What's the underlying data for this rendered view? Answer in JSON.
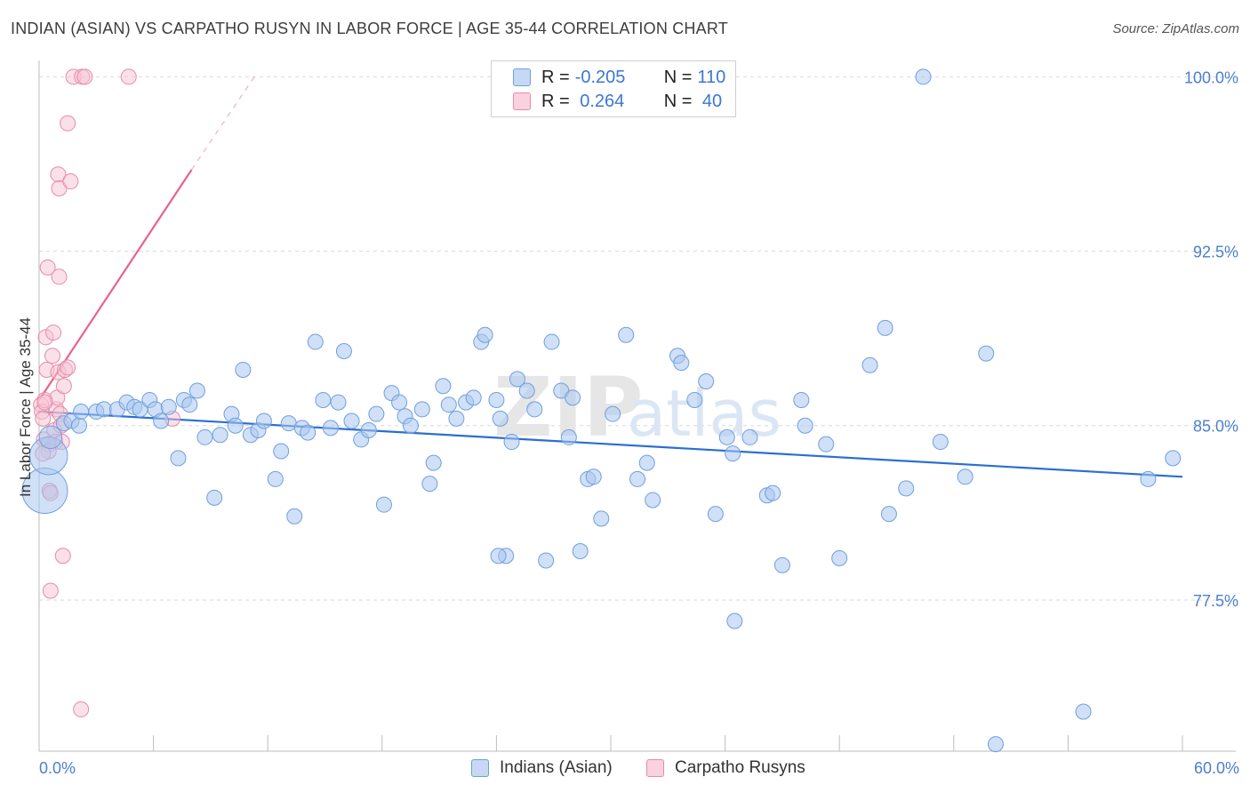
{
  "title": "INDIAN (ASIAN) VS CARPATHO RUSYN IN LABOR FORCE | AGE 35-44 CORRELATION CHART",
  "source": "Source: ZipAtlas.com",
  "watermark": "ZIPatlas",
  "colors": {
    "blue_fill": "#a9c6ef",
    "blue_stroke": "#6f9fe0",
    "blue_line": "#2a6fd1",
    "pink_fill": "#f6c3d3",
    "pink_stroke": "#e98aa8",
    "pink_line": "#e8628c",
    "axis_text": "#4a7fd0",
    "grid": "#d9d9d9"
  },
  "legend": {
    "rows": [
      {
        "r_label": "R =",
        "r_value": "-0.205",
        "n_label": "N =",
        "n_value": "110",
        "series": "blue"
      },
      {
        "r_label": "R =",
        "r_value": " 0.264",
        "n_label": "N =",
        "n_value": " 40",
        "series": "pink"
      }
    ]
  },
  "bottom_legend": {
    "blue_label": "Indians (Asian)",
    "pink_label": "Carpatho Rusyns"
  },
  "chart_data": {
    "type": "scatter",
    "xlabel": "",
    "ylabel": "In Labor Force | Age 35-44",
    "xlim": [
      0,
      60
    ],
    "ylim": [
      71,
      100.7
    ],
    "x_tick_labels": [
      {
        "value": 0,
        "label": "0.0%"
      },
      {
        "value": 60,
        "label": "60.0%"
      }
    ],
    "y_tick_labels": [
      {
        "value": 100.0,
        "label": "100.0%"
      },
      {
        "value": 92.5,
        "label": "92.5%"
      },
      {
        "value": 85.0,
        "label": "85.0%"
      },
      {
        "value": 77.5,
        "label": "77.5%"
      }
    ],
    "x_minor_ticks": [
      0,
      6,
      12,
      18,
      24,
      30,
      36,
      42,
      48,
      54,
      60
    ],
    "grid": true,
    "series": [
      {
        "name": "Indians (Asian)",
        "color": "blue",
        "trend": {
          "x": [
            0,
            60
          ],
          "y": [
            85.6,
            82.8
          ]
        },
        "points": [
          [
            0.3,
            82.2,
            3
          ],
          [
            0.5,
            83.7,
            2.5
          ],
          [
            0.6,
            84.5,
            1.5
          ],
          [
            1.3,
            85.1,
            1
          ],
          [
            1.7,
            85.2,
            1
          ],
          [
            2.1,
            85.0,
            1
          ],
          [
            2.2,
            85.6,
            1
          ],
          [
            3.0,
            85.6,
            1
          ],
          [
            3.4,
            85.7,
            1
          ],
          [
            4.1,
            85.7,
            1
          ],
          [
            4.6,
            86.0,
            1
          ],
          [
            5.0,
            85.8,
            1
          ],
          [
            5.3,
            85.7,
            1
          ],
          [
            5.8,
            86.1,
            1
          ],
          [
            6.1,
            85.7,
            1
          ],
          [
            6.4,
            85.2,
            1
          ],
          [
            6.8,
            85.8,
            1
          ],
          [
            7.3,
            83.6,
            1
          ],
          [
            7.6,
            86.1,
            1
          ],
          [
            7.9,
            85.9,
            1
          ],
          [
            8.3,
            86.5,
            1
          ],
          [
            8.7,
            84.5,
            1
          ],
          [
            9.2,
            81.9,
            1
          ],
          [
            9.5,
            84.6,
            1
          ],
          [
            10.1,
            85.5,
            1
          ],
          [
            10.3,
            85.0,
            1
          ],
          [
            10.7,
            87.4,
            1
          ],
          [
            11.1,
            84.6,
            1
          ],
          [
            11.5,
            84.8,
            1
          ],
          [
            11.8,
            85.2,
            1
          ],
          [
            12.4,
            82.7,
            1
          ],
          [
            12.7,
            83.9,
            1
          ],
          [
            13.1,
            85.1,
            1
          ],
          [
            13.4,
            81.1,
            1
          ],
          [
            13.8,
            84.9,
            1
          ],
          [
            14.1,
            84.7,
            1
          ],
          [
            14.5,
            88.6,
            1
          ],
          [
            14.9,
            86.1,
            1
          ],
          [
            15.3,
            84.9,
            1
          ],
          [
            15.7,
            86.0,
            1
          ],
          [
            16.0,
            88.2,
            1
          ],
          [
            16.4,
            85.2,
            1
          ],
          [
            16.9,
            84.4,
            1
          ],
          [
            17.3,
            84.8,
            1
          ],
          [
            17.7,
            85.5,
            1
          ],
          [
            18.1,
            81.6,
            1
          ],
          [
            18.5,
            86.4,
            1
          ],
          [
            18.9,
            86.0,
            1
          ],
          [
            19.2,
            85.4,
            1
          ],
          [
            19.5,
            85.0,
            1
          ],
          [
            20.1,
            85.7,
            1
          ],
          [
            20.5,
            82.5,
            1
          ],
          [
            20.7,
            83.4,
            1
          ],
          [
            21.2,
            86.7,
            1
          ],
          [
            21.5,
            85.9,
            1
          ],
          [
            21.9,
            85.3,
            1
          ],
          [
            22.4,
            86.0,
            1
          ],
          [
            22.8,
            86.2,
            1
          ],
          [
            23.2,
            88.6,
            1
          ],
          [
            23.4,
            88.9,
            1
          ],
          [
            24.0,
            86.1,
            1
          ],
          [
            24.2,
            85.3,
            1
          ],
          [
            24.5,
            79.4,
            1
          ],
          [
            24.8,
            84.3,
            1
          ],
          [
            25.1,
            87.0,
            1
          ],
          [
            25.6,
            86.5,
            1
          ],
          [
            26.0,
            85.7,
            1
          ],
          [
            26.6,
            79.2,
            1
          ],
          [
            26.9,
            88.6,
            1
          ],
          [
            27.4,
            86.5,
            1
          ],
          [
            27.8,
            84.5,
            1
          ],
          [
            28.0,
            86.2,
            1
          ],
          [
            28.4,
            79.6,
            1
          ],
          [
            28.8,
            82.7,
            1
          ],
          [
            29.1,
            82.8,
            1
          ],
          [
            29.5,
            81.0,
            1
          ],
          [
            30.1,
            85.5,
            1
          ],
          [
            30.8,
            88.9,
            1
          ],
          [
            31.4,
            82.7,
            1
          ],
          [
            31.9,
            83.4,
            1
          ],
          [
            32.2,
            81.8,
            1
          ],
          [
            33.5,
            88.0,
            1
          ],
          [
            33.7,
            87.7,
            1
          ],
          [
            34.4,
            86.1,
            1
          ],
          [
            35.0,
            86.9,
            1
          ],
          [
            35.5,
            81.2,
            1
          ],
          [
            36.1,
            84.5,
            1
          ],
          [
            36.4,
            83.8,
            1
          ],
          [
            37.3,
            84.5,
            1
          ],
          [
            38.2,
            82.0,
            1
          ],
          [
            38.5,
            82.1,
            1
          ],
          [
            39.0,
            79.0,
            1
          ],
          [
            40.0,
            86.1,
            1
          ],
          [
            40.2,
            85.0,
            1
          ],
          [
            41.3,
            84.2,
            1
          ],
          [
            42.0,
            79.3,
            1
          ],
          [
            43.6,
            87.6,
            1
          ],
          [
            44.4,
            89.2,
            1
          ],
          [
            44.6,
            81.2,
            1
          ],
          [
            45.5,
            82.3,
            1
          ],
          [
            46.4,
            100.0,
            1
          ],
          [
            47.3,
            84.3,
            1
          ],
          [
            48.6,
            82.8,
            1
          ],
          [
            49.7,
            88.1,
            1
          ],
          [
            50.2,
            71.3,
            1
          ],
          [
            58.2,
            82.7,
            1
          ],
          [
            54.8,
            72.7,
            1
          ],
          [
            59.5,
            83.6,
            1
          ],
          [
            36.5,
            76.6,
            1
          ],
          [
            24.1,
            79.4,
            1
          ]
        ]
      },
      {
        "name": "Carpatho Rusyns",
        "color": "pink",
        "trend": {
          "x": [
            0,
            8.0
          ],
          "y": [
            86.1,
            96.0
          ]
        },
        "trend_dashed": {
          "x": [
            8.0,
            11.3
          ],
          "y": [
            96.0,
            100.0
          ]
        },
        "points": [
          [
            0.1,
            85.9,
            1
          ],
          [
            0.15,
            85.6,
            1
          ],
          [
            0.2,
            85.3,
            1
          ],
          [
            0.25,
            84.4,
            1
          ],
          [
            0.3,
            86.1,
            1
          ],
          [
            0.35,
            88.8,
            1
          ],
          [
            0.4,
            87.4,
            1
          ],
          [
            0.45,
            91.8,
            1
          ],
          [
            0.5,
            84.2,
            1
          ],
          [
            0.55,
            82.2,
            1
          ],
          [
            0.6,
            82.1,
            1
          ],
          [
            0.6,
            77.9,
            1
          ],
          [
            0.7,
            88.0,
            1
          ],
          [
            0.75,
            89.0,
            1
          ],
          [
            0.8,
            84.8,
            1
          ],
          [
            0.85,
            84.3,
            1
          ],
          [
            0.9,
            85.7,
            1
          ],
          [
            0.95,
            86.2,
            1
          ],
          [
            1.0,
            87.3,
            1
          ],
          [
            1.0,
            95.8,
            1
          ],
          [
            1.05,
            95.2,
            1
          ],
          [
            1.05,
            91.4,
            1
          ],
          [
            1.1,
            85.5,
            1
          ],
          [
            1.15,
            85.0,
            1
          ],
          [
            1.25,
            79.4,
            1
          ],
          [
            1.3,
            86.7,
            1
          ],
          [
            1.35,
            87.4,
            1
          ],
          [
            1.5,
            87.5,
            1
          ],
          [
            1.5,
            98.0,
            1
          ],
          [
            1.65,
            95.5,
            1
          ],
          [
            1.8,
            100.0,
            1
          ],
          [
            2.25,
            100.0,
            1
          ],
          [
            2.4,
            100.0,
            1
          ],
          [
            2.2,
            72.8,
            1
          ],
          [
            4.7,
            100.0,
            1
          ],
          [
            7.0,
            85.3,
            1
          ],
          [
            0.3,
            86.0,
            1
          ],
          [
            0.5,
            83.9,
            1
          ],
          [
            1.2,
            84.3,
            1
          ],
          [
            0.2,
            83.8,
            1
          ]
        ]
      }
    ]
  }
}
